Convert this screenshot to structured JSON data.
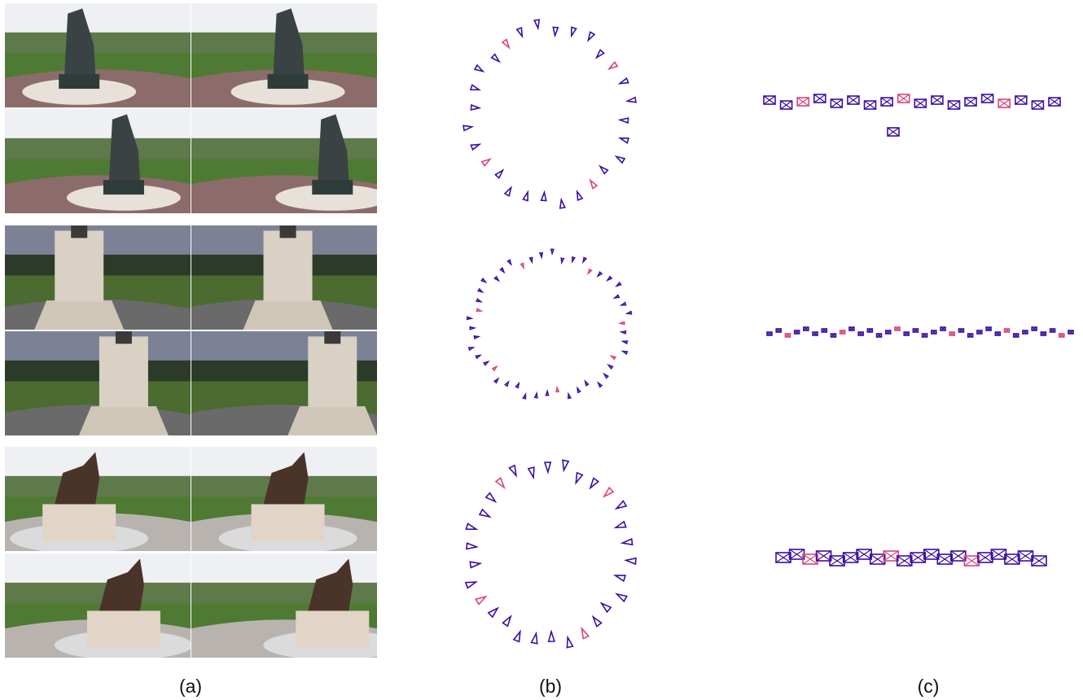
{
  "figure": {
    "panel_labels": {
      "a": "(a)",
      "b": "(b)",
      "c": "(c)"
    },
    "rows": [
      {
        "subject": "statue-group",
        "photo_count": 4
      },
      {
        "subject": "monument-pedestal",
        "photo_count": 4
      },
      {
        "subject": "horse-statue",
        "photo_count": 4
      }
    ],
    "colors": {
      "camera_primary": "#3b0ea1",
      "camera_highlight": "#d8457a",
      "sky": "#dfe3ea",
      "grass": "#4f7a33",
      "pavement": "#b9b3b0",
      "brick": "#8c6c6a"
    },
    "icons": [
      "camera-frustum-icon"
    ]
  }
}
